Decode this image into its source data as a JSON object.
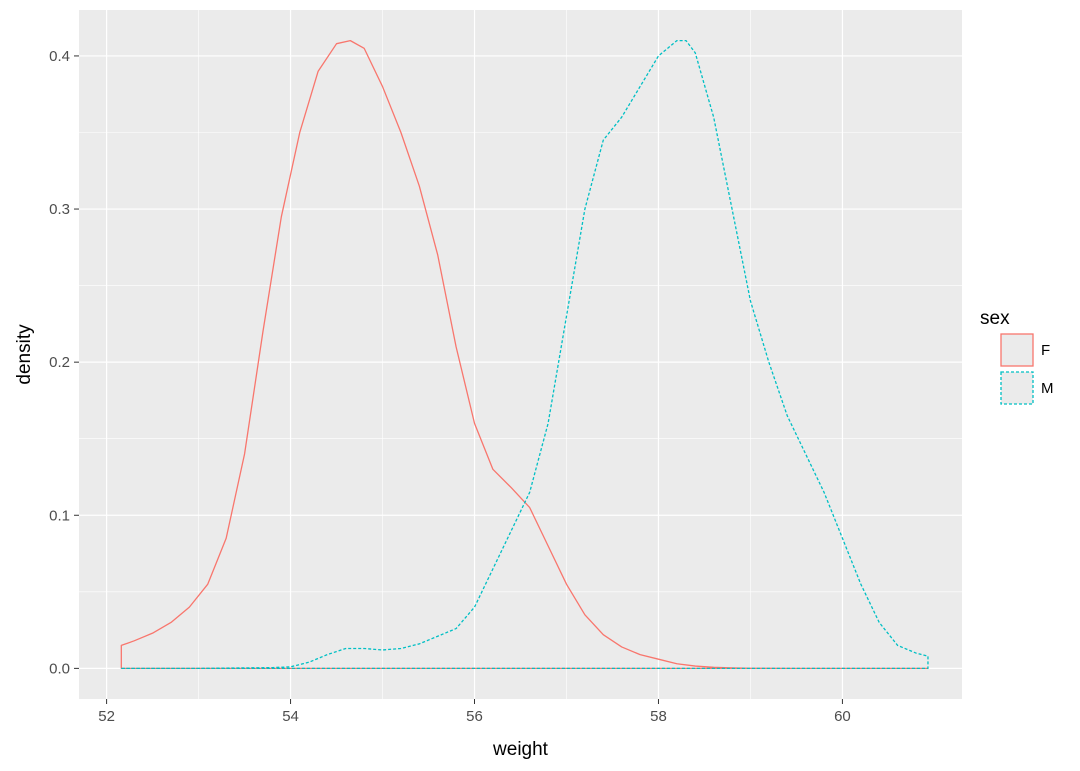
{
  "chart_data": {
    "type": "area",
    "subtype": "density",
    "title": "",
    "xlabel": "weight",
    "ylabel": "density",
    "xlim": [
      51.7,
      61.3
    ],
    "ylim": [
      -0.02,
      0.43
    ],
    "x_ticks": [
      52,
      54,
      56,
      58,
      60
    ],
    "x_tick_labels": [
      "52",
      "54",
      "56",
      "58",
      "60"
    ],
    "y_ticks": [
      0.0,
      0.1,
      0.2,
      0.3,
      0.4
    ],
    "y_tick_labels": [
      "0.0",
      "0.1",
      "0.2",
      "0.3",
      "0.4"
    ],
    "grid": true,
    "legend": {
      "title": "sex",
      "position": "right",
      "entries": [
        {
          "label": "F",
          "color": "#F8766D",
          "linetype": "solid"
        },
        {
          "label": "M",
          "color": "#00BFC4",
          "linetype": "dashed"
        }
      ]
    },
    "series": [
      {
        "name": "F",
        "color": "#F8766D",
        "linetype": "solid",
        "x": [
          52.16,
          52.3,
          52.5,
          52.7,
          52.9,
          53.1,
          53.3,
          53.5,
          53.7,
          53.9,
          54.1,
          54.3,
          54.5,
          54.65,
          54.8,
          55.0,
          55.2,
          55.4,
          55.6,
          55.8,
          56.0,
          56.2,
          56.4,
          56.6,
          56.8,
          57.0,
          57.2,
          57.4,
          57.6,
          57.8,
          58.0,
          58.2,
          58.4,
          58.6,
          58.8,
          59.0,
          59.5,
          60.0,
          60.5,
          60.93
        ],
        "y": [
          0.015,
          0.018,
          0.023,
          0.03,
          0.04,
          0.055,
          0.085,
          0.14,
          0.22,
          0.295,
          0.35,
          0.39,
          0.408,
          0.41,
          0.405,
          0.38,
          0.35,
          0.315,
          0.27,
          0.21,
          0.16,
          0.13,
          0.118,
          0.105,
          0.08,
          0.055,
          0.035,
          0.022,
          0.014,
          0.009,
          0.006,
          0.003,
          0.0015,
          0.0007,
          0.0003,
          0.0001,
          0.0,
          0.0,
          0.0,
          0.0
        ]
      },
      {
        "name": "M",
        "color": "#00BFC4",
        "linetype": "dashed",
        "x": [
          52.16,
          53.0,
          53.8,
          54.0,
          54.2,
          54.4,
          54.6,
          54.8,
          55.0,
          55.2,
          55.4,
          55.6,
          55.8,
          56.0,
          56.2,
          56.4,
          56.6,
          56.8,
          57.0,
          57.2,
          57.4,
          57.6,
          57.8,
          58.0,
          58.2,
          58.3,
          58.4,
          58.6,
          58.8,
          59.0,
          59.2,
          59.4,
          59.6,
          59.8,
          60.0,
          60.2,
          60.4,
          60.6,
          60.8,
          60.93
        ],
        "y": [
          0.0,
          0.0,
          0.0005,
          0.001,
          0.004,
          0.009,
          0.013,
          0.013,
          0.012,
          0.013,
          0.016,
          0.021,
          0.026,
          0.04,
          0.065,
          0.09,
          0.115,
          0.16,
          0.23,
          0.3,
          0.345,
          0.36,
          0.38,
          0.4,
          0.41,
          0.41,
          0.402,
          0.36,
          0.3,
          0.24,
          0.2,
          0.165,
          0.14,
          0.115,
          0.085,
          0.055,
          0.03,
          0.015,
          0.01,
          0.008
        ]
      }
    ]
  }
}
